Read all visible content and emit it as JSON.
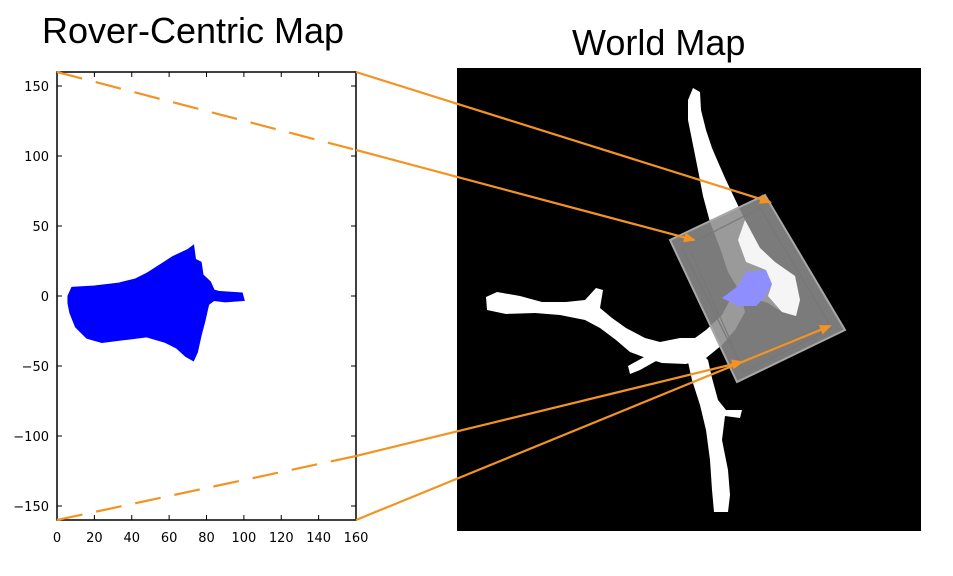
{
  "titles": {
    "rover_centric": "Rover-Centric Map",
    "world": "World Map"
  },
  "chart_data": {
    "type": "scatter",
    "title": "Rover-Centric Map",
    "xlim": [
      0,
      160
    ],
    "ylim": [
      -160,
      160
    ],
    "x_ticks": [
      "0",
      "20",
      "40",
      "60",
      "80",
      "100",
      "120",
      "140",
      "160"
    ],
    "y_ticks": [
      "150",
      "100",
      "50",
      "0",
      "−50",
      "−100",
      "−150"
    ],
    "grid": false,
    "navigable_region_outline": [
      [
        6,
        0
      ],
      [
        8,
        6
      ],
      [
        20,
        7
      ],
      [
        33,
        9
      ],
      [
        42,
        12
      ],
      [
        48,
        16
      ],
      [
        55,
        22
      ],
      [
        62,
        28
      ],
      [
        70,
        33
      ],
      [
        73,
        36
      ],
      [
        74,
        26
      ],
      [
        77,
        24
      ],
      [
        78,
        15
      ],
      [
        82,
        10
      ],
      [
        84,
        4
      ],
      [
        87,
        3
      ],
      [
        99,
        2
      ],
      [
        100,
        -3
      ],
      [
        90,
        -4
      ],
      [
        84,
        -3
      ],
      [
        81,
        -6
      ],
      [
        79,
        -18
      ],
      [
        77,
        -28
      ],
      [
        75,
        -40
      ],
      [
        73,
        -46
      ],
      [
        69,
        -43
      ],
      [
        64,
        -37
      ],
      [
        58,
        -33
      ],
      [
        48,
        -29
      ],
      [
        36,
        -31
      ],
      [
        24,
        -33
      ],
      [
        16,
        -30
      ],
      [
        10,
        -22
      ],
      [
        7,
        -12
      ],
      [
        6,
        -5
      ]
    ],
    "colors": {
      "navigable": "#0000ff",
      "arrows": "#f39323",
      "world_background": "#000000",
      "world_terrain": "#ffffff",
      "overlay_panel": "#8c8c8c",
      "rover_fov": "#8e8eff"
    }
  }
}
